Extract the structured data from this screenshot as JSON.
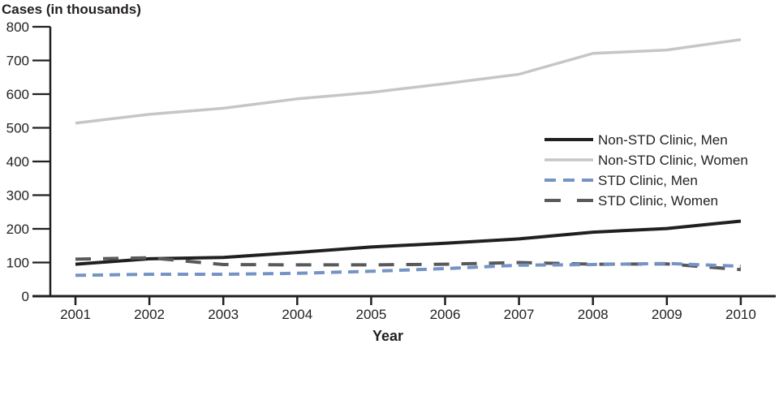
{
  "chart_data": {
    "type": "line",
    "title": "",
    "ylabel": "Cases (in thousands)",
    "xlabel": "Year",
    "x": [
      2001,
      2002,
      2003,
      2004,
      2005,
      2006,
      2007,
      2008,
      2009,
      2010
    ],
    "ylim": [
      0,
      800
    ],
    "yticks": [
      0,
      100,
      200,
      300,
      400,
      500,
      600,
      700,
      800
    ],
    "grid": false,
    "legend_position": "right-middle",
    "axis_color": "#231f20",
    "series": [
      {
        "name": "Non-STD Clinic, Men",
        "color": "#231f20",
        "line_style": "solid",
        "width": 4,
        "values": [
          95,
          111,
          115,
          130,
          146,
          157,
          170,
          190,
          201,
          223
        ]
      },
      {
        "name": "Non-STD Clinic, Women",
        "color": "#c5c6c8",
        "line_style": "solid",
        "width": 3.5,
        "values": [
          514,
          540,
          558,
          586,
          605,
          631,
          659,
          721,
          731,
          762
        ]
      },
      {
        "name": "STD Clinic, Men",
        "color": "#7593c4",
        "line_style": "dashed-short",
        "width": 4,
        "values": [
          62,
          65,
          65,
          68,
          74,
          82,
          92,
          94,
          97,
          89
        ]
      },
      {
        "name": "STD Clinic, Women",
        "color": "#58595b",
        "line_style": "dashed-long",
        "width": 4,
        "values": [
          110,
          114,
          94,
          93,
          93,
          95,
          100,
          95,
          96,
          79
        ]
      }
    ]
  }
}
